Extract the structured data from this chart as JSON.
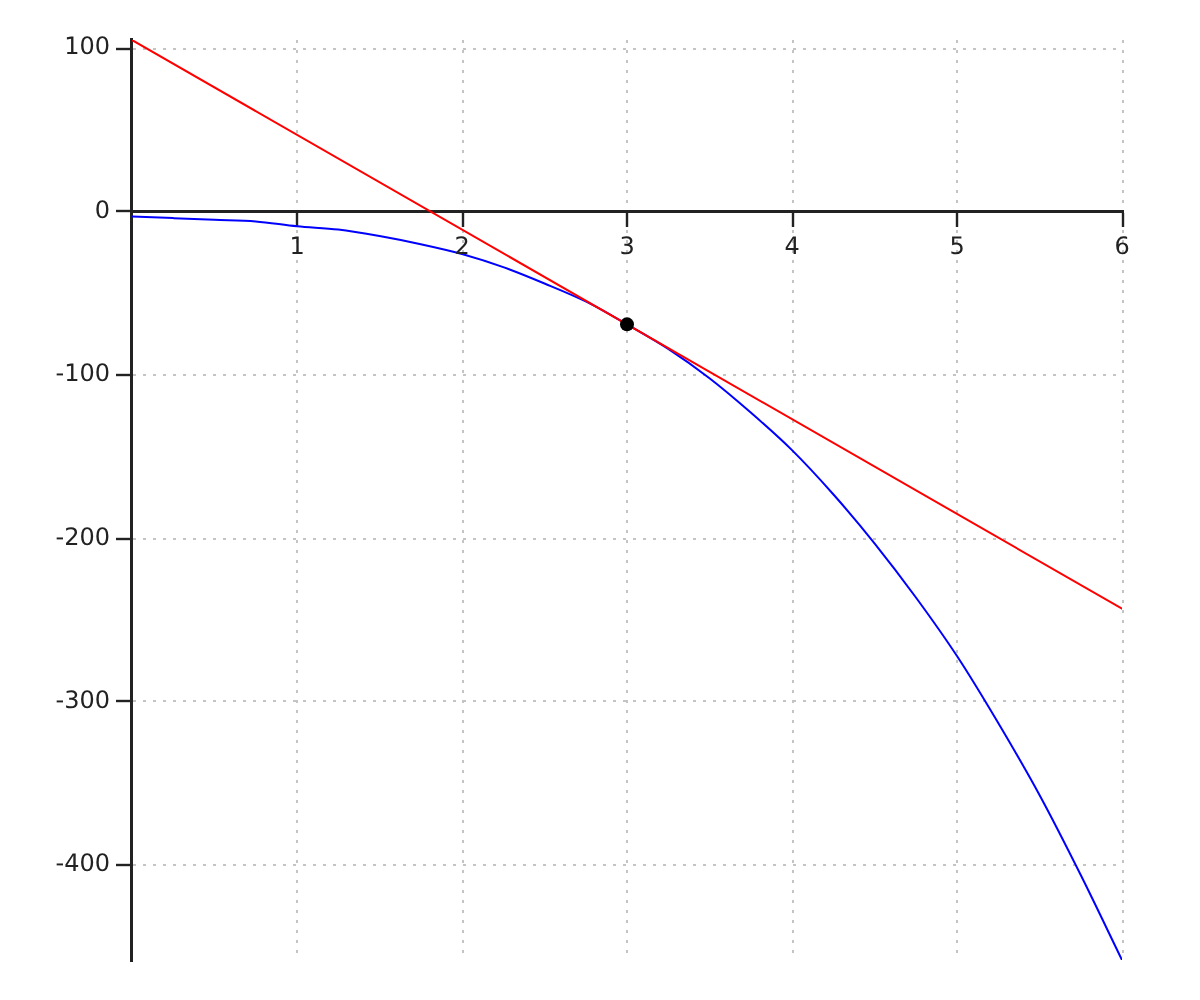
{
  "chart_data": {
    "type": "line",
    "xlim": [
      0,
      6
    ],
    "ylim": [
      -458,
      105
    ],
    "xticks": [
      1,
      2,
      3,
      4,
      5,
      6
    ],
    "yticks": [
      -400,
      -300,
      -200,
      -100,
      0,
      100
    ],
    "grid": true,
    "series": [
      {
        "color": "#0000ff",
        "x": [
          0,
          0.25,
          0.5,
          0.75,
          1,
          1.25,
          1.5,
          1.75,
          2,
          2.25,
          2.5,
          2.75,
          3,
          3.25,
          3.5,
          3.75,
          4,
          4.25,
          4.5,
          4.75,
          5,
          5.25,
          5.5,
          5.75,
          6
        ],
        "values": [
          -3,
          -4,
          -5,
          -6,
          -9,
          -11,
          -15,
          -20,
          -26,
          -34,
          -44,
          -55,
          -69,
          -84,
          -102,
          -123,
          -146,
          -173,
          -203,
          -236,
          -272,
          -313,
          -357,
          -406,
          -458
        ]
      },
      {
        "color": "#ff0000",
        "x": [
          0,
          6
        ],
        "values": [
          105,
          -243
        ]
      },
      {
        "type": "scatter",
        "color": "#000000",
        "marker": "circle",
        "x": [
          3
        ],
        "values": [
          -69
        ]
      }
    ]
  }
}
